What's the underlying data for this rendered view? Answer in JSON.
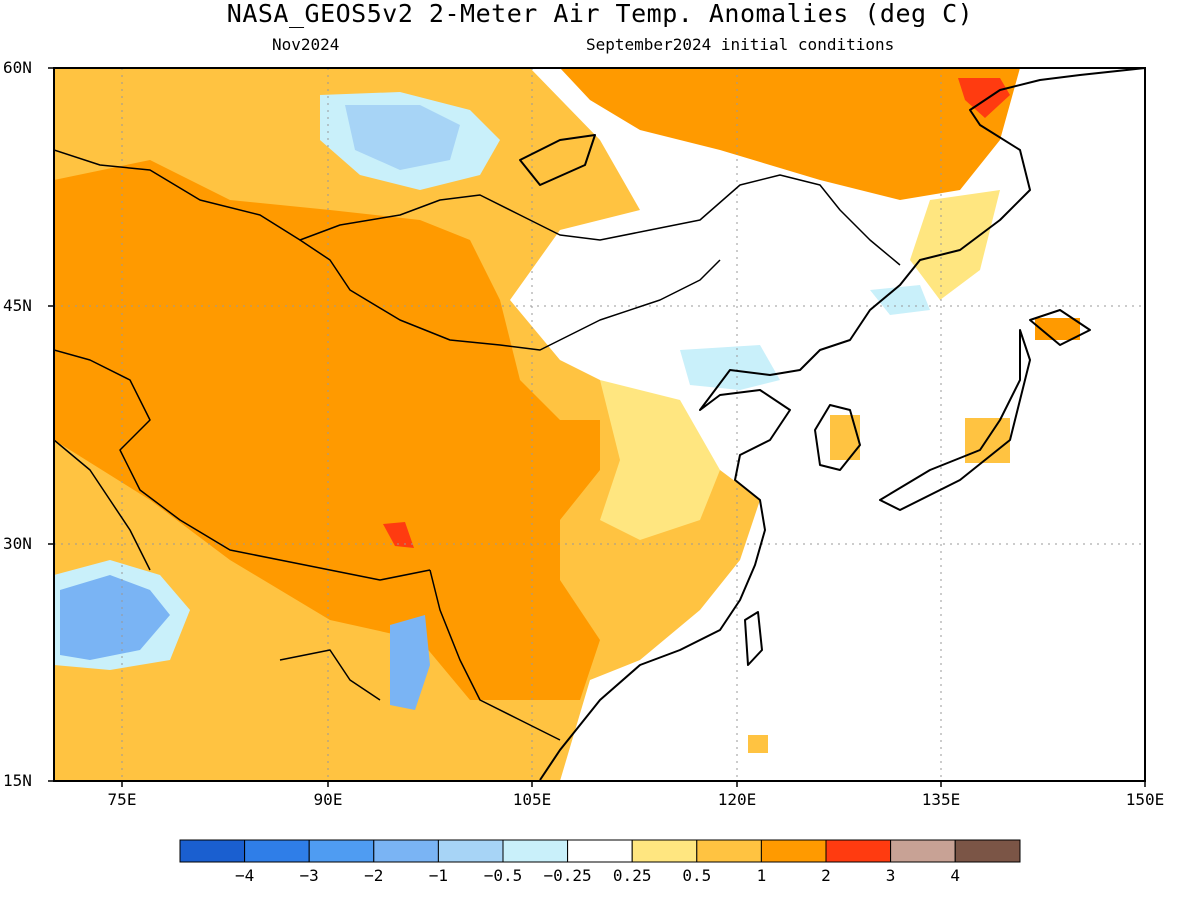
{
  "header": {
    "title": "NASA_GEOS5v2 2-Meter Air Temp. Anomalies (deg C)",
    "forecast_month": "Nov2024",
    "initial_conditions": "September2024 initial conditions"
  },
  "map": {
    "region": "East Asia",
    "projection": "lat-lon",
    "lat_range": [
      "15N",
      "60N"
    ],
    "lon_range": [
      "70E",
      "150E"
    ],
    "lat_labels": [
      "60N",
      "45N",
      "30N",
      "15N"
    ],
    "lon_labels": [
      "75E",
      "90E",
      "105E",
      "120E",
      "135E",
      "150E"
    ],
    "grid": "dotted"
  },
  "colorbar": {
    "colors": [
      "#1a5fd0",
      "#2f7ee8",
      "#4f9cf2",
      "#7ab4f4",
      "#a7d4f6",
      "#c9f0fa",
      "#ffffff",
      "#ffe680",
      "#ffc341",
      "#ff9a00",
      "#ff3b10",
      "#c8a295",
      "#7b5546"
    ],
    "labels": [
      "−4",
      "−3",
      "−2",
      "−1",
      "−0.5",
      "−0.25",
      "0.25",
      "0.5",
      "1",
      "2",
      "3",
      "4"
    ]
  }
}
